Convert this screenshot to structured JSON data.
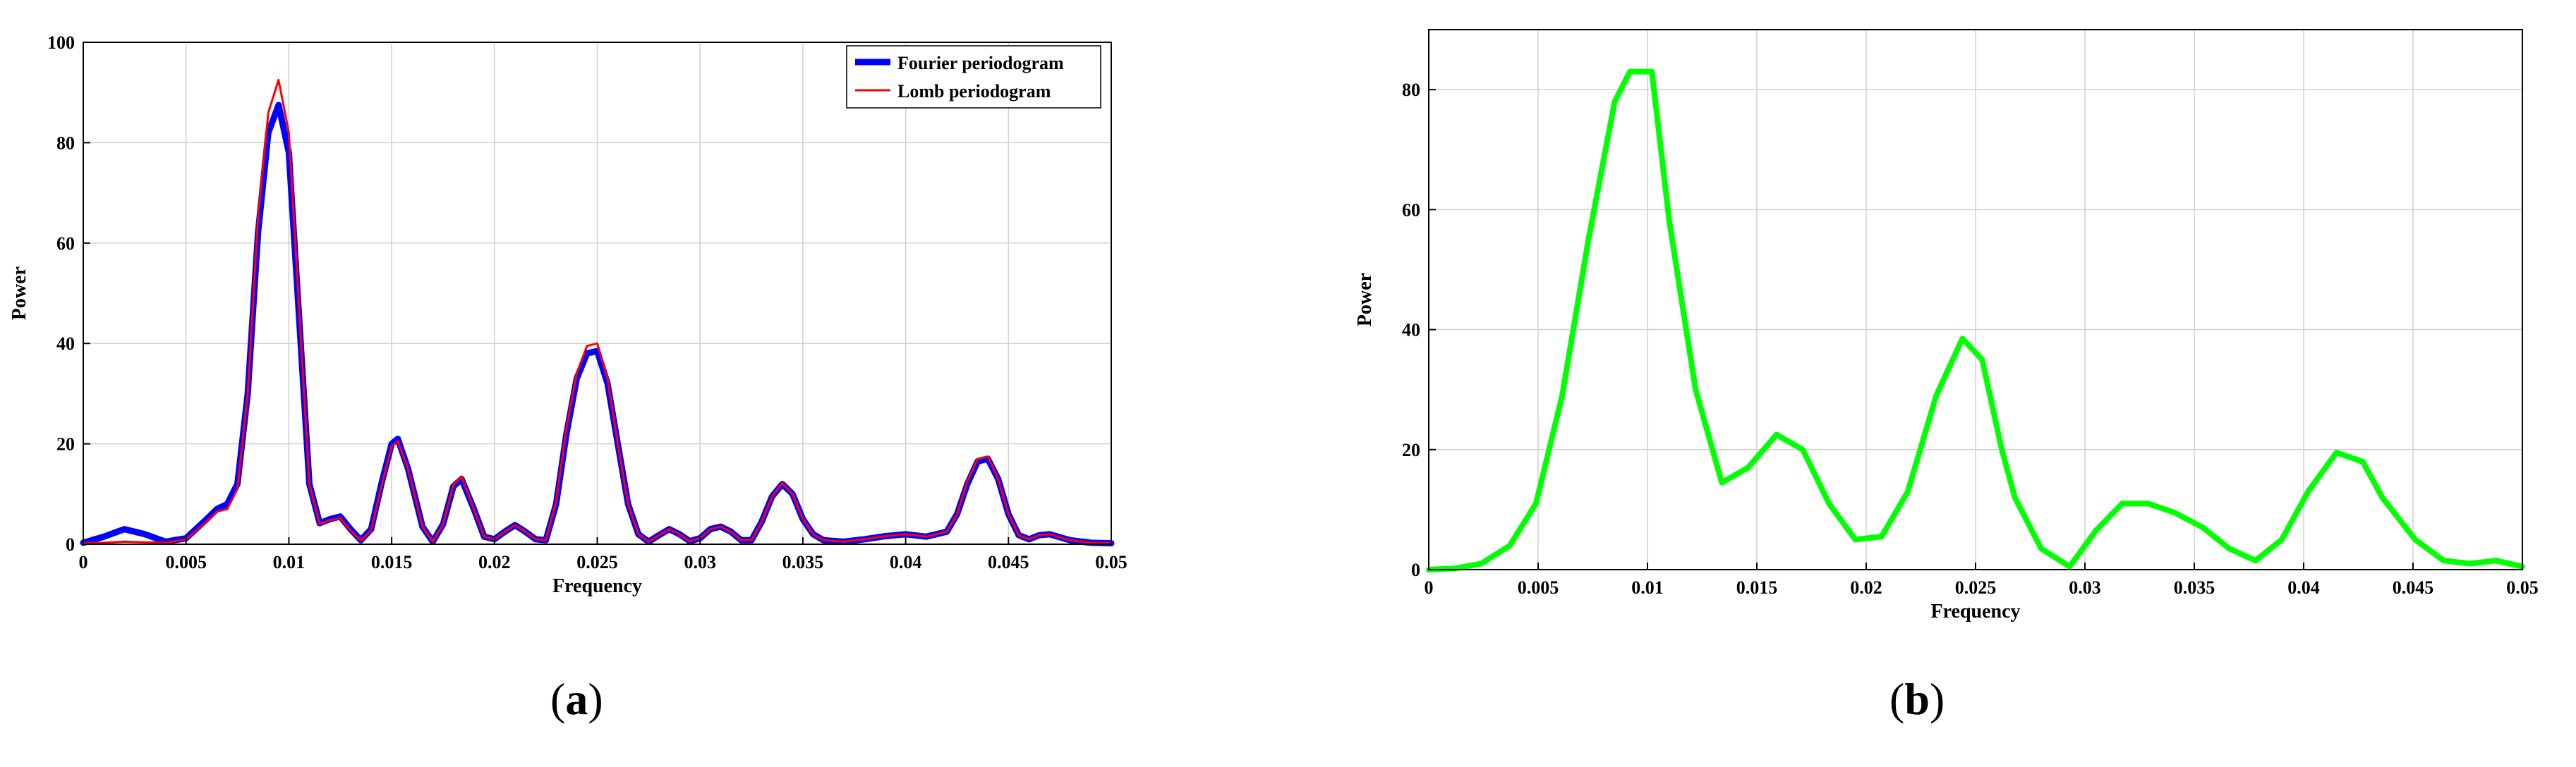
{
  "chart_data": [
    {
      "panel": "a",
      "type": "line",
      "xlabel": "Frequency",
      "ylabel": "Power",
      "xlim": [
        0,
        0.05
      ],
      "ylim": [
        0,
        100
      ],
      "xticks": [
        "0",
        "0.005",
        "0.01",
        "0.015",
        "0.02",
        "0.025",
        "0.03",
        "0.035",
        "0.04",
        "0.045",
        "0.05"
      ],
      "yticks": [
        "0",
        "20",
        "40",
        "60",
        "80",
        "100"
      ],
      "grid": true,
      "legend": "top-right",
      "series": [
        {
          "name": "Fourier periodogram",
          "color": "#0000ff",
          "x": [
            0,
            0.001,
            0.002,
            0.003,
            0.004,
            0.005,
            0.006,
            0.0065,
            0.007,
            0.0075,
            0.008,
            0.0085,
            0.009,
            0.0095,
            0.01,
            0.0105,
            0.011,
            0.0115,
            0.012,
            0.0125,
            0.013,
            0.0135,
            0.014,
            0.0145,
            0.015,
            0.0153,
            0.0158,
            0.0165,
            0.017,
            0.0175,
            0.018,
            0.0184,
            0.019,
            0.0195,
            0.02,
            0.0205,
            0.021,
            0.0215,
            0.022,
            0.0225,
            0.023,
            0.0235,
            0.024,
            0.0245,
            0.025,
            0.0255,
            0.026,
            0.0265,
            0.027,
            0.0275,
            0.028,
            0.0285,
            0.029,
            0.0295,
            0.03,
            0.0305,
            0.031,
            0.0315,
            0.032,
            0.0325,
            0.033,
            0.0335,
            0.034,
            0.0345,
            0.035,
            0.0355,
            0.036,
            0.037,
            0.038,
            0.039,
            0.04,
            0.041,
            0.042,
            0.0425,
            0.043,
            0.0435,
            0.044,
            0.0445,
            0.045,
            0.0455,
            0.046,
            0.0465,
            0.047,
            0.048,
            0.049,
            0.05
          ],
          "y": [
            0.3,
            1.5,
            3.0,
            2.0,
            0.5,
            1.2,
            5.0,
            7.0,
            8.0,
            12,
            30,
            62,
            82,
            87.5,
            78,
            45,
            12,
            4.2,
            5.0,
            5.5,
            3.0,
            0.8,
            3.0,
            12,
            20,
            21,
            15,
            3.5,
            0.5,
            4.0,
            11.5,
            13,
            7.0,
            1.5,
            1.0,
            2.5,
            3.8,
            2.5,
            1.0,
            0.8,
            8.0,
            22,
            33,
            38,
            38.5,
            32,
            20,
            8.0,
            2.0,
            0.5,
            1.8,
            3.0,
            2.0,
            0.6,
            1.2,
            3.0,
            3.5,
            2.5,
            0.8,
            0.8,
            4.5,
            9.5,
            12,
            10,
            5.0,
            2.0,
            0.8,
            0.5,
            1.0,
            1.6,
            2.0,
            1.5,
            2.5,
            6.0,
            12,
            16.5,
            17,
            13,
            6.0,
            1.8,
            1.0,
            1.8,
            2.0,
            0.8,
            0.3,
            0.2
          ]
        },
        {
          "name": "Lomb periodogram",
          "color": "#ff0000",
          "x": [
            0,
            0.001,
            0.002,
            0.003,
            0.004,
            0.005,
            0.006,
            0.0065,
            0.007,
            0.0075,
            0.008,
            0.0085,
            0.009,
            0.0095,
            0.01,
            0.0105,
            0.011,
            0.0115,
            0.012,
            0.0125,
            0.013,
            0.0135,
            0.014,
            0.0145,
            0.015,
            0.0153,
            0.0158,
            0.0165,
            0.017,
            0.0175,
            0.018,
            0.0184,
            0.019,
            0.0195,
            0.02,
            0.0205,
            0.021,
            0.0215,
            0.022,
            0.0225,
            0.023,
            0.0235,
            0.024,
            0.0245,
            0.025,
            0.0255,
            0.026,
            0.0265,
            0.027,
            0.0275,
            0.028,
            0.0285,
            0.029,
            0.0295,
            0.03,
            0.0305,
            0.031,
            0.0315,
            0.032,
            0.0325,
            0.033,
            0.0335,
            0.034,
            0.0345,
            0.035,
            0.0355,
            0.036,
            0.037,
            0.038,
            0.039,
            0.04,
            0.041,
            0.042,
            0.0425,
            0.043,
            0.0435,
            0.044,
            0.0445,
            0.045,
            0.0455,
            0.046,
            0.0465,
            0.047,
            0.048,
            0.049,
            0.05
          ],
          "y": [
            0.2,
            0.3,
            0.5,
            0.4,
            0.3,
            1.0,
            4.5,
            6.5,
            7.0,
            11,
            30,
            65,
            86,
            92.5,
            82,
            47,
            12,
            4.0,
            4.8,
            5.2,
            2.8,
            0.7,
            2.8,
            11.5,
            19.5,
            20.5,
            15,
            3.5,
            0.5,
            4.0,
            11.8,
            13.5,
            7.0,
            1.5,
            1.0,
            2.5,
            3.8,
            2.5,
            1.0,
            0.8,
            8.5,
            23,
            34,
            39.5,
            40,
            33,
            20,
            8.0,
            2.0,
            0.5,
            1.8,
            3.0,
            2.0,
            0.6,
            1.2,
            3.0,
            3.5,
            2.5,
            0.8,
            0.8,
            4.5,
            9.5,
            12.2,
            10,
            5.0,
            2.0,
            0.8,
            0.5,
            1.0,
            1.6,
            2.0,
            1.5,
            2.5,
            6.0,
            12.5,
            17,
            17.5,
            13,
            6.0,
            1.8,
            1.0,
            1.8,
            2.0,
            0.8,
            0.3,
            0.2
          ]
        }
      ]
    },
    {
      "panel": "b",
      "type": "line",
      "xlabel": "Frequency",
      "ylabel": "Power",
      "xlim": [
        0,
        0.05
      ],
      "ylim": [
        0,
        90
      ],
      "xticks": [
        "0",
        "0.005",
        "0.01",
        "0.015",
        "0.02",
        "0.025",
        "0.03",
        "0.035",
        "0.04",
        "0.045",
        "0.05"
      ],
      "yticks": [
        "0",
        "20",
        "40",
        "60",
        "80"
      ],
      "grid": true,
      "series": [
        {
          "color": "#00ff00",
          "x": [
            0,
            0.0012,
            0.0024,
            0.0037,
            0.0049,
            0.0061,
            0.0073,
            0.0085,
            0.0092,
            0.0102,
            0.011,
            0.0122,
            0.0134,
            0.0146,
            0.0159,
            0.0171,
            0.0183,
            0.0195,
            0.0207,
            0.0219,
            0.0232,
            0.0244,
            0.0253,
            0.0262,
            0.0268,
            0.028,
            0.0293,
            0.0305,
            0.0317,
            0.0329,
            0.0341,
            0.0354,
            0.0366,
            0.0378,
            0.039,
            0.0402,
            0.0415,
            0.0427,
            0.0436,
            0.0451,
            0.0464,
            0.0476,
            0.0488,
            0.05
          ],
          "y": [
            0,
            0.2,
            1.0,
            4.0,
            11,
            29,
            55,
            78,
            83,
            83,
            58,
            30,
            14.5,
            17,
            22.5,
            20,
            11,
            5,
            5.5,
            13,
            29,
            38.5,
            35,
            20,
            12,
            3.5,
            0.5,
            6.5,
            11,
            11,
            9.5,
            7,
            3.5,
            1.5,
            5,
            13,
            19.5,
            18,
            12,
            5,
            1.5,
            1,
            1.5,
            0.5
          ]
        }
      ]
    }
  ],
  "captions": {
    "a": {
      "open": "(",
      "letter": "a",
      "close": ")"
    },
    "b": {
      "open": "(",
      "letter": "b",
      "close": ")"
    }
  }
}
